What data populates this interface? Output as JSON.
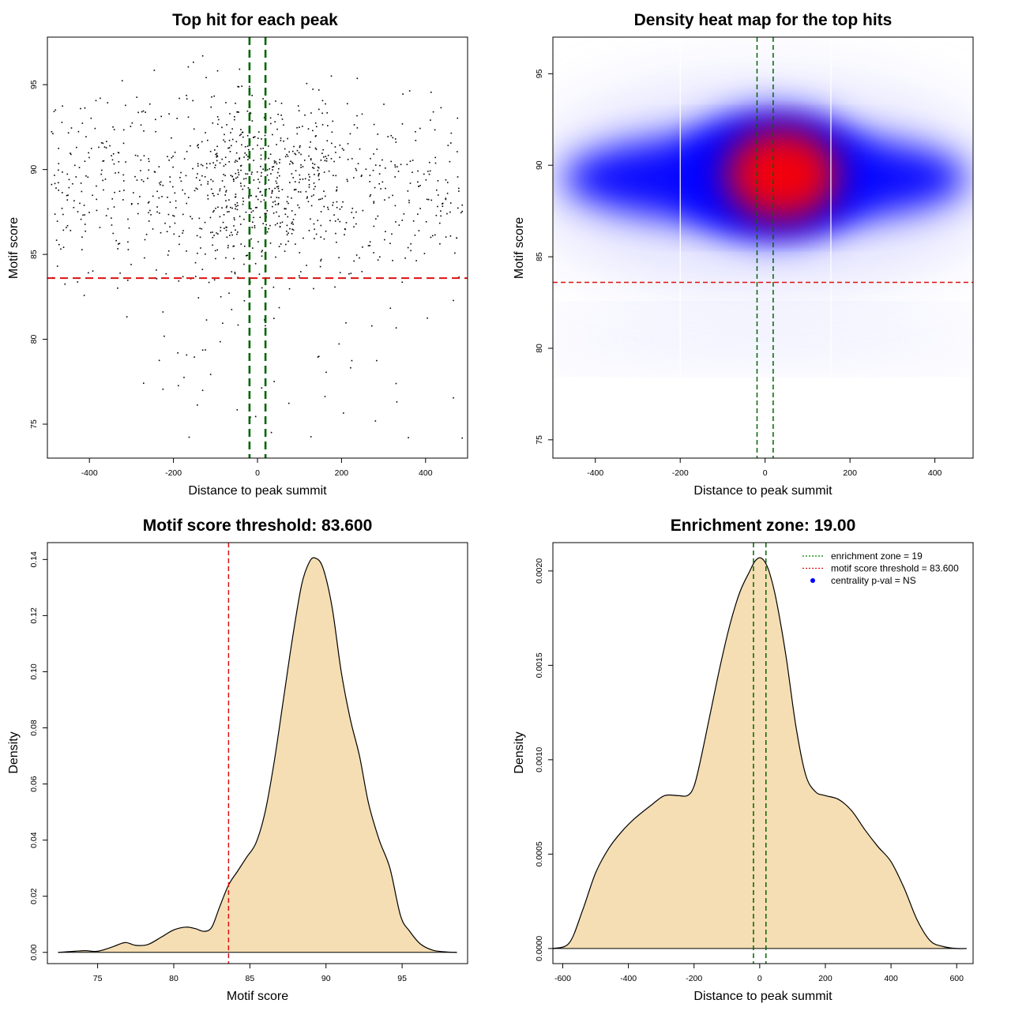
{
  "chart_data": [
    {
      "id": "scatter",
      "type": "scatter",
      "title": "Top hit for each peak",
      "xlabel": "Distance to peak summit",
      "ylabel": "Motif score",
      "xlim": [
        -500,
        500
      ],
      "ylim": [
        73.0,
        97.8
      ],
      "xticks": [
        "-400",
        "-200",
        "0",
        "200",
        "400"
      ],
      "yticks": [
        "75",
        "80",
        "85",
        "90",
        "95"
      ],
      "vlines": [
        -19,
        19
      ],
      "hline": 83.6,
      "colors": {
        "points": "#000000",
        "vlines": "#006400",
        "hline": "#dd1111"
      },
      "point_count": 1100,
      "note_points": "about 1100 points spread over x -490..490, y 74..97, densest near x=0, y=88-91"
    },
    {
      "id": "heatmap",
      "type": "heatmap",
      "title": "Density heat map for the top hits",
      "xlabel": "Distance to peak summit",
      "ylabel": "Motif score",
      "xlim": [
        -500,
        490
      ],
      "ylim": [
        74.0,
        97.0
      ],
      "xticks": [
        "-400",
        "-200",
        "0",
        "200",
        "400"
      ],
      "yticks": [
        "75",
        "80",
        "85",
        "90",
        "95"
      ],
      "vlines": [
        -19,
        19
      ],
      "hline": 83.6,
      "white_lines": [
        -200,
        155
      ],
      "hotspot": {
        "x": 40,
        "y": 89.5
      },
      "colors": {
        "low": "#ffffff",
        "mid": "#0000ff",
        "high": "#ff0000",
        "vlines": "#006400",
        "hline": "#dd1111"
      }
    },
    {
      "id": "score_density",
      "type": "area",
      "title": "Motif score threshold: 83.600",
      "xlabel": "Motif score",
      "ylabel": "Density",
      "xlim": [
        71.7,
        99.3
      ],
      "ylim": [
        -0.004,
        0.146
      ],
      "xticks": [
        "75",
        "80",
        "85",
        "90",
        "95"
      ],
      "yticks": [
        "0.00",
        "0.02",
        "0.04",
        "0.06",
        "0.08",
        "0.10",
        "0.12",
        "0.14"
      ],
      "x": [
        72.4,
        73.5,
        74.2,
        75.0,
        76.0,
        76.8,
        77.5,
        78.3,
        79.2,
        80.0,
        80.8,
        81.4,
        82.0,
        82.5,
        83.0,
        83.6,
        84.2,
        84.8,
        85.4,
        86.0,
        86.6,
        87.2,
        87.8,
        88.4,
        88.9,
        89.3,
        89.8,
        90.4,
        91.0,
        91.6,
        92.2,
        92.8,
        93.5,
        94.2,
        94.9,
        95.5,
        96.2,
        97.0,
        97.8,
        98.6
      ],
      "y": [
        0.0,
        0.0004,
        0.0006,
        0.0004,
        0.002,
        0.0035,
        0.0025,
        0.0028,
        0.0055,
        0.008,
        0.009,
        0.0085,
        0.0075,
        0.009,
        0.016,
        0.024,
        0.029,
        0.034,
        0.039,
        0.05,
        0.068,
        0.09,
        0.112,
        0.131,
        0.139,
        0.1405,
        0.137,
        0.123,
        0.1,
        0.083,
        0.07,
        0.053,
        0.04,
        0.03,
        0.013,
        0.0075,
        0.003,
        0.0008,
        0.0002,
        0.0
      ],
      "vline": 83.6,
      "colors": {
        "fill": "#f5deb3",
        "line": "#000000",
        "vline": "#dd1111"
      }
    },
    {
      "id": "distance_density",
      "type": "area",
      "title": "Enrichment zone: 19.00",
      "xlabel": "Distance to peak summit",
      "ylabel": "Density",
      "xlim": [
        -630,
        650
      ],
      "ylim": [
        -8e-05,
        0.00215
      ],
      "xticks": [
        "-600",
        "-400",
        "-200",
        "0",
        "200",
        "400",
        "600"
      ],
      "yticks": [
        "0.0000",
        "0.0005",
        "0.0010",
        "0.0015",
        "0.0020"
      ],
      "x": [
        -630,
        -580,
        -540,
        -500,
        -460,
        -420,
        -380,
        -330,
        -290,
        -250,
        -220,
        -200,
        -180,
        -150,
        -120,
        -90,
        -60,
        -30,
        -15,
        0,
        15,
        30,
        50,
        80,
        110,
        140,
        170,
        200,
        240,
        280,
        320,
        360,
        400,
        440,
        480,
        520,
        560,
        600,
        630
      ],
      "y": [
        0.0,
        3e-05,
        0.0002,
        0.0004,
        0.00053,
        0.00062,
        0.00069,
        0.00076,
        0.00081,
        0.00081,
        0.00081,
        0.00086,
        0.001,
        0.00125,
        0.0015,
        0.00172,
        0.00189,
        0.002,
        0.00205,
        0.00207,
        0.00205,
        0.00199,
        0.00185,
        0.00155,
        0.00118,
        0.00092,
        0.00083,
        0.00081,
        0.00079,
        0.00073,
        0.00063,
        0.00054,
        0.00046,
        0.00032,
        0.00015,
        4e-05,
        1e-05,
        0.0,
        0.0
      ],
      "vlines": [
        -19,
        19
      ],
      "legend": {
        "position": "top-right",
        "items": [
          {
            "label": "enrichment zone = 19",
            "color": "#008000",
            "kind": "dotted-line"
          },
          {
            "label": "motif score threshold = 83.600",
            "color": "#dd1111",
            "kind": "dotted-line"
          },
          {
            "label": "centrality p-val = NS",
            "color": "#0000ff",
            "kind": "point"
          }
        ]
      },
      "colors": {
        "fill": "#f5deb3",
        "line": "#000000",
        "vlines": "#006400"
      }
    }
  ]
}
